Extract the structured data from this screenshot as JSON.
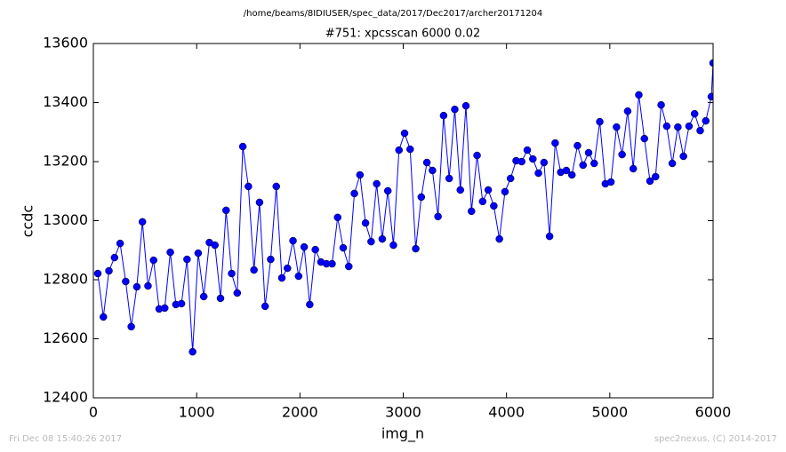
{
  "chart_data": {
    "type": "line",
    "suptitle": "/home/beams/8IDIUSER/spec_data/2017/Dec2017/archer20171204",
    "title": "#751: xpcsscan 6000 0.02",
    "xlabel": "img_n",
    "ylabel": "ccdc",
    "footer_left": "Fri Dec 08 15:40:26 2017",
    "footer_right": "spec2nexus, (C) 2014-2017",
    "xlim": [
      0,
      6000
    ],
    "ylim": [
      12400,
      13600
    ],
    "xticks": [
      0,
      1000,
      2000,
      3000,
      4000,
      5000,
      6000
    ],
    "yticks": [
      12400,
      12600,
      12800,
      13000,
      13200,
      13400,
      13600
    ],
    "grid": false,
    "x": [
      43,
      97,
      151,
      205,
      259,
      313,
      367,
      421,
      475,
      529,
      583,
      637,
      691,
      745,
      799,
      853,
      907,
      961,
      1015,
      1069,
      1123,
      1177,
      1231,
      1285,
      1339,
      1393,
      1447,
      1501,
      1555,
      1609,
      1663,
      1717,
      1771,
      1825,
      1879,
      1933,
      1987,
      2041,
      2095,
      2149,
      2203,
      2257,
      2311,
      2365,
      2419,
      2473,
      2527,
      2581,
      2635,
      2689,
      2743,
      2797,
      2851,
      2905,
      2959,
      3013,
      3067,
      3121,
      3175,
      3229,
      3283,
      3337,
      3391,
      3445,
      3499,
      3553,
      3607,
      3661,
      3715,
      3769,
      3823,
      3877,
      3931,
      3985,
      4039,
      4093,
      4147,
      4201,
      4255,
      4309,
      4363,
      4417,
      4471,
      4525,
      4579,
      4633,
      4687,
      4741,
      4795,
      4849,
      4903,
      4957,
      5011,
      5065,
      5119,
      5173,
      5227,
      5281,
      5335,
      5389,
      5443,
      5497,
      5551,
      5605,
      5659,
      5713,
      5767,
      5821,
      5875,
      5929,
      5983,
      6000
    ],
    "series": [
      {
        "color": "#0000ff",
        "values": [
          12821,
          12674,
          12830,
          12875,
          12923,
          12794,
          12641,
          12776,
          12996,
          12779,
          12866,
          12701,
          12704,
          12893,
          12716,
          12719,
          12869,
          12556,
          12890,
          12743,
          12926,
          12917,
          12737,
          13035,
          12821,
          12755,
          13251,
          13116,
          12833,
          13062,
          12710,
          12869,
          13116,
          12806,
          12839,
          12932,
          12812,
          12911,
          12716,
          12902,
          12860,
          12854,
          12854,
          13011,
          12908,
          12845,
          13092,
          13155,
          12992,
          12929,
          13125,
          12938,
          13101,
          12917,
          13239,
          13296,
          13242,
          12905,
          13080,
          13197,
          13170,
          13014,
          13356,
          13143,
          13377,
          13104,
          13389,
          13032,
          13221,
          13065,
          13104,
          13050,
          12938,
          13098,
          13143,
          13203,
          13200,
          13239,
          13209,
          13161,
          13197,
          12947,
          13263,
          13164,
          13170,
          13155,
          13254,
          13188,
          13230,
          13194,
          13335,
          13125,
          13131,
          13317,
          13224,
          13371,
          13176,
          13426,
          13278,
          13134,
          13149,
          13392,
          13320,
          13194,
          13317,
          13218,
          13320,
          13362,
          13305,
          13338,
          13420,
          13534
        ]
      }
    ]
  }
}
